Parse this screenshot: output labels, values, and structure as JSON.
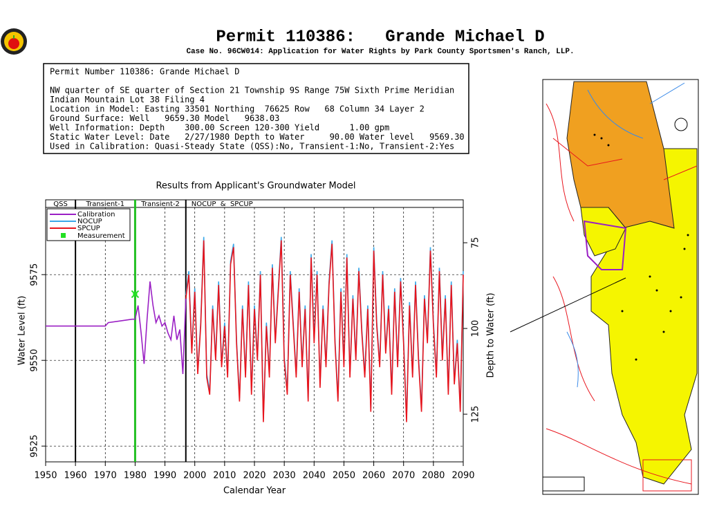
{
  "header": {
    "title": "Permit 110386:   Grande Michael D",
    "subtitle": "Case No. 96CW014: Application for Water Rights by Park County Sportsmen's Ranch, LLP."
  },
  "info": {
    "lines": [
      "Permit Number 110386: Grande Michael D",
      "NW quarter of SE quarter of Section 21 Township 9S Range 75W Sixth Prime Meridian",
      "Indian Mountain Lot 38 Filing 4",
      "Location in Model: Easting 33501 Northing  76625 Row   68 Column 34 Layer 2",
      "Ground Surface: Well   9659.30 Model   9638.03",
      "Well Information: Depth    300.00 Screen 120-300 Yield      1.00 gpm",
      "Static Water Level: Date   2/27/1980 Depth to Water     90.00 Water level   9569.30",
      "Used in Calibration: Quasi-Steady State (QSS):No, Transient-1:No, Transient-2:Yes"
    ]
  },
  "chart_data": {
    "type": "line",
    "title": "Results from Applicant's Groundwater Model",
    "x_label": "Calendar Year",
    "y_label": "Water Level (ft)",
    "y2_label": "Depth to Water (ft)",
    "xlim": [
      1950,
      2090
    ],
    "xticks": [
      1950,
      1960,
      1970,
      1980,
      1990,
      2000,
      2010,
      2020,
      2030,
      2040,
      2050,
      2060,
      2070,
      2080,
      2090
    ],
    "ylim": [
      9520.4,
      9594.6
    ],
    "yticks": [
      9525,
      9550,
      9575
    ],
    "y2lim": [
      138.9,
      64.7
    ],
    "y2ticks": [
      75,
      100,
      125
    ],
    "grid": true,
    "periods": [
      {
        "name": "QSS",
        "start": 1950,
        "end": 1960
      },
      {
        "name": "Transient-1",
        "start": 1960,
        "end": 1980
      },
      {
        "name": "Transient-2",
        "start": 1980,
        "end": 1997
      },
      {
        "name": "NOCUP  &  SPCUP",
        "start": 1997,
        "end": 2090
      }
    ],
    "series": [
      {
        "name": "Calibration",
        "color": "#9a1fc4",
        "x": [
          1950,
          1970,
          1971,
          1975,
          1979,
          1980,
          1981,
          1982,
          1983,
          1984,
          1985,
          1986,
          1987,
          1988,
          1989,
          1990,
          1991,
          1992,
          1993,
          1994,
          1995,
          1996,
          1997
        ],
        "values": [
          9560,
          9560,
          9561,
          9561.5,
          9562,
          9562,
          9566,
          9558,
          9549,
          9562,
          9573,
          9566,
          9561,
          9563,
          9560,
          9561,
          9558,
          9556,
          9563,
          9556,
          9559,
          9546,
          9568
        ]
      },
      {
        "name": "NOCUP",
        "color": "#3aa7e8",
        "x": [
          1997,
          1998,
          1999,
          2000,
          2001,
          2002,
          2003,
          2004,
          2005,
          2006,
          2007,
          2008,
          2009,
          2010,
          2011,
          2012,
          2013,
          2014,
          2015,
          2016,
          2017,
          2018,
          2019,
          2020,
          2021,
          2022,
          2023,
          2024,
          2025,
          2026,
          2027,
          2028,
          2029,
          2030,
          2031,
          2032,
          2033,
          2034,
          2035,
          2036,
          2037,
          2038,
          2039,
          2040,
          2041,
          2042,
          2043,
          2044,
          2045,
          2046,
          2047,
          2048,
          2049,
          2050,
          2051,
          2052,
          2053,
          2054,
          2055,
          2056,
          2057,
          2058,
          2059,
          2060,
          2061,
          2062,
          2063,
          2064,
          2065,
          2066,
          2067,
          2068,
          2069,
          2070,
          2071,
          2072,
          2073,
          2074,
          2075,
          2076,
          2077,
          2078,
          2079,
          2080,
          2081,
          2082,
          2083,
          2084,
          2085,
          2086,
          2087,
          2088,
          2089,
          2090
        ],
        "values": [
          9569,
          9576,
          9553,
          9571,
          9547,
          9561,
          9586,
          9546,
          9541,
          9566,
          9551,
          9573,
          9549,
          9561,
          9546,
          9579,
          9584,
          9556,
          9539,
          9566,
          9546,
          9573,
          9541,
          9566,
          9551,
          9576,
          9533,
          9561,
          9546,
          9578,
          9556,
          9571,
          9586,
          9551,
          9541,
          9576,
          9561,
          9546,
          9571,
          9549,
          9566,
          9539,
          9581,
          9556,
          9576,
          9543,
          9566,
          9549,
          9573,
          9585,
          9556,
          9539,
          9571,
          9549,
          9581,
          9546,
          9569,
          9551,
          9577,
          9559,
          9546,
          9566,
          9536,
          9583,
          9561,
          9549,
          9576,
          9553,
          9566,
          9541,
          9571,
          9549,
          9574,
          9556,
          9533,
          9567,
          9546,
          9573,
          9551,
          9536,
          9569,
          9556,
          9583,
          9561,
          9546,
          9577,
          9551,
          9569,
          9541,
          9573,
          9544,
          9556,
          9536,
          9576
        ]
      },
      {
        "name": "SPCUP",
        "color": "#e8141c",
        "x": [
          1997,
          1998,
          1999,
          2000,
          2001,
          2002,
          2003,
          2004,
          2005,
          2006,
          2007,
          2008,
          2009,
          2010,
          2011,
          2012,
          2013,
          2014,
          2015,
          2016,
          2017,
          2018,
          2019,
          2020,
          2021,
          2022,
          2023,
          2024,
          2025,
          2026,
          2027,
          2028,
          2029,
          2030,
          2031,
          2032,
          2033,
          2034,
          2035,
          2036,
          2037,
          2038,
          2039,
          2040,
          2041,
          2042,
          2043,
          2044,
          2045,
          2046,
          2047,
          2048,
          2049,
          2050,
          2051,
          2052,
          2053,
          2054,
          2055,
          2056,
          2057,
          2058,
          2059,
          2060,
          2061,
          2062,
          2063,
          2064,
          2065,
          2066,
          2067,
          2068,
          2069,
          2070,
          2071,
          2072,
          2073,
          2074,
          2075,
          2076,
          2077,
          2078,
          2079,
          2080,
          2081,
          2082,
          2083,
          2084,
          2085,
          2086,
          2087,
          2088,
          2089,
          2090
        ],
        "values": [
          9568,
          9575,
          9552,
          9570,
          9546,
          9560,
          9585,
          9545,
          9540,
          9565,
          9550,
          9572,
          9548,
          9560,
          9545,
          9578,
          9583,
          9555,
          9538,
          9565,
          9545,
          9572,
          9540,
          9565,
          9550,
          9575,
          9532,
          9560,
          9545,
          9577,
          9555,
          9570,
          9585,
          9550,
          9540,
          9575,
          9560,
          9545,
          9570,
          9548,
          9565,
          9538,
          9580,
          9555,
          9575,
          9542,
          9565,
          9548,
          9572,
          9584,
          9555,
          9538,
          9570,
          9548,
          9580,
          9545,
          9568,
          9550,
          9576,
          9558,
          9545,
          9565,
          9535,
          9582,
          9560,
          9548,
          9575,
          9552,
          9565,
          9540,
          9570,
          9548,
          9573,
          9555,
          9532,
          9566,
          9545,
          9572,
          9550,
          9535,
          9568,
          9555,
          9582,
          9560,
          9545,
          9576,
          9550,
          9568,
          9540,
          9572,
          9543,
          9555,
          9535,
          9575
        ]
      }
    ],
    "measurement": {
      "name": "Measurement",
      "color": "#22e022",
      "x": [
        1980
      ],
      "values": [
        9569.3
      ]
    }
  }
}
